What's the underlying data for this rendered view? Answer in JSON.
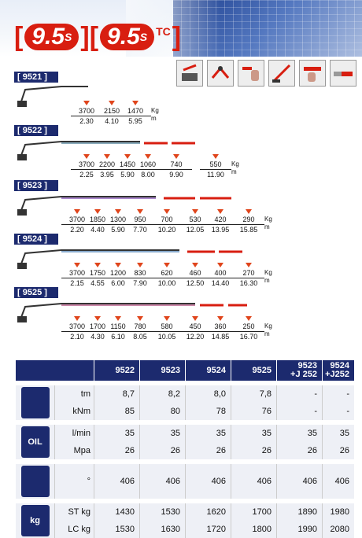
{
  "header": {
    "left_bracket": "[",
    "model1": "9.5",
    "suffix1": "S",
    "mid": "][",
    "model2": "9.5",
    "suffix2": "S",
    "suffix2b": "T",
    "suffix2c": "C",
    "right_bracket": "]"
  },
  "feature_icons": [
    "rotation-icon",
    "chain-link-icon",
    "hand-control-icon",
    "boom-angle-icon",
    "remote-control-icon",
    "extension-icon"
  ],
  "units": {
    "kg": "Kg",
    "m": "m"
  },
  "sections": [
    {
      "tag": "[ 9521 ]",
      "loads": [
        [
          "3700",
          "2.30"
        ],
        [
          "2150",
          "4.10"
        ],
        [
          "1470",
          "5.95"
        ]
      ]
    },
    {
      "tag": "[ 9522 ]",
      "loads": [
        [
          "3700",
          "2.25"
        ],
        [
          "2200",
          "3.95"
        ],
        [
          "1450",
          "5.90"
        ],
        [
          "1060",
          "8.00"
        ],
        [
          "740",
          "9.90"
        ],
        [
          "550",
          "11.90"
        ]
      ]
    },
    {
      "tag": "[ 9523 ]",
      "loads": [
        [
          "3700",
          "2.20"
        ],
        [
          "1850",
          "4.40"
        ],
        [
          "1300",
          "5.90"
        ],
        [
          "950",
          "7.70"
        ],
        [
          "700",
          "10.20"
        ],
        [
          "530",
          "12.05"
        ],
        [
          "420",
          "13.95"
        ],
        [
          "290",
          "15.85"
        ]
      ]
    },
    {
      "tag": "[ 9524 ]",
      "loads": [
        [
          "3700",
          "2.15"
        ],
        [
          "1750",
          "4.55"
        ],
        [
          "1200",
          "6.00"
        ],
        [
          "830",
          "7.90"
        ],
        [
          "620",
          "10.00"
        ],
        [
          "460",
          "12.50"
        ],
        [
          "400",
          "14.40"
        ],
        [
          "270",
          "16.30"
        ]
      ]
    },
    {
      "tag": "[ 9525 ]",
      "loads": [
        [
          "3700",
          "2.10"
        ],
        [
          "1700",
          "4.30"
        ],
        [
          "1150",
          "6.10"
        ],
        [
          "780",
          "8.05"
        ],
        [
          "580",
          "10.05"
        ],
        [
          "450",
          "12.20"
        ],
        [
          "360",
          "14.85"
        ],
        [
          "250",
          "16.70"
        ]
      ]
    }
  ],
  "table": {
    "columns": [
      "9522",
      "9523",
      "9524",
      "9525",
      "9523\n+J 252",
      "9524\n+J252"
    ],
    "groups": [
      {
        "icon": "crane-moment-icon",
        "icon_text": "",
        "rows": [
          {
            "unit": "tm",
            "values": [
              "8,7",
              "8,2",
              "8,0",
              "7,8",
              "-",
              "-"
            ]
          },
          {
            "unit": "kNm",
            "values": [
              "85",
              "80",
              "78",
              "76",
              "-",
              "-"
            ]
          }
        ]
      },
      {
        "icon": "oil-icon",
        "icon_text": "OIL",
        "rows": [
          {
            "unit": "l/min",
            "values": [
              "35",
              "35",
              "35",
              "35",
              "35",
              "35"
            ]
          },
          {
            "unit": "Mpa",
            "values": [
              "26",
              "26",
              "26",
              "26",
              "26",
              "26"
            ]
          }
        ]
      },
      {
        "icon": "slewing-icon",
        "icon_text": "",
        "rows": [
          {
            "unit": "°",
            "values": [
              "406",
              "406",
              "406",
              "406",
              "406",
              "406"
            ]
          }
        ]
      },
      {
        "icon": "weight-icon",
        "icon_text": "kg",
        "rows": [
          {
            "unit": "ST kg",
            "values": [
              "1430",
              "1530",
              "1620",
              "1700",
              "1890",
              "1980"
            ]
          },
          {
            "unit": "LC kg",
            "values": [
              "1530",
              "1630",
              "1720",
              "1800",
              "1990",
              "2080"
            ]
          }
        ]
      }
    ]
  }
}
